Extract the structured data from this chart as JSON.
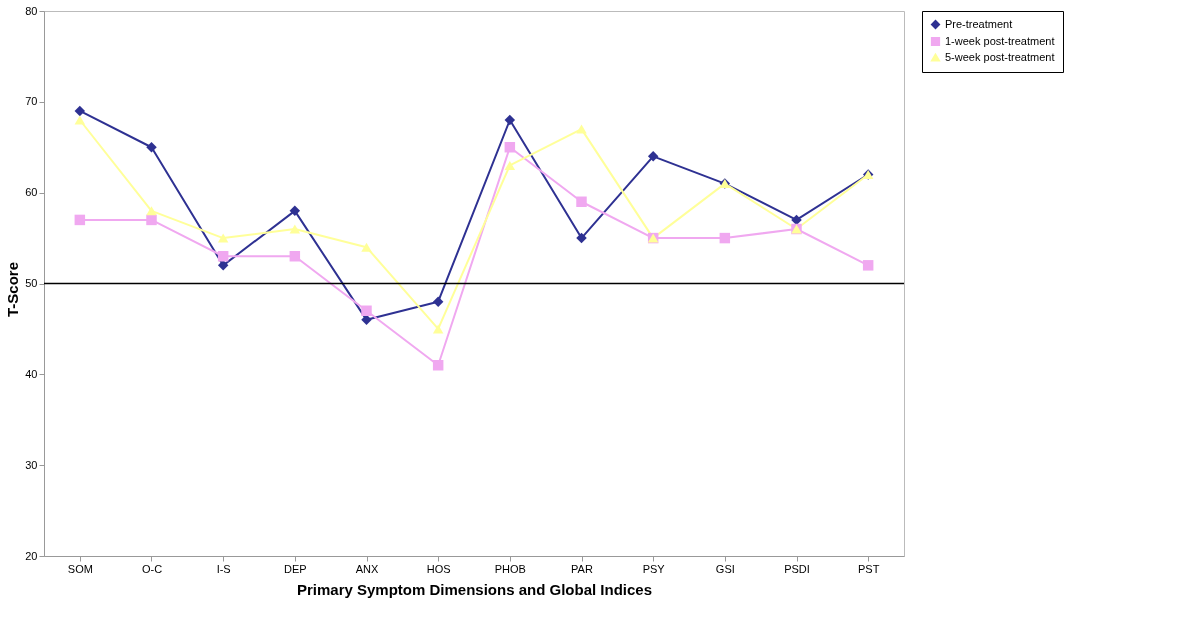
{
  "chart_data": {
    "type": "line",
    "xlabel": "Primary Symptom Dimensions and Global Indices",
    "ylabel": "T-Score",
    "categories": [
      "SOM",
      "O-C",
      "I-S",
      "DEP",
      "ANX",
      "HOS",
      "PHOB",
      "PAR",
      "PSY",
      "GSI",
      "PSDI",
      "PST"
    ],
    "series": [
      {
        "name": "Pre-treatment",
        "color": "#2e3192",
        "marker": "diamond",
        "values": [
          69,
          65,
          52,
          58,
          46,
          48,
          68,
          55,
          64,
          61,
          57,
          62
        ]
      },
      {
        "name": "1-week post-treatment",
        "color": "#f0a8f0",
        "marker": "square",
        "values": [
          57,
          57,
          53,
          53,
          47,
          41,
          65,
          59,
          55,
          55,
          56,
          52
        ]
      },
      {
        "name": "5-week post-treatment",
        "color": "#ffff99",
        "marker": "triangle",
        "values": [
          68,
          58,
          55,
          56,
          54,
          45,
          63,
          67,
          55,
          61,
          56,
          62
        ]
      }
    ],
    "ylim": [
      20,
      80
    ],
    "yticks": [
      20,
      30,
      40,
      50,
      60,
      70,
      80
    ],
    "grid": false,
    "legend": "right",
    "line_style": "solid",
    "ref_lines": [
      {
        "axis": "y",
        "value": 50,
        "label": null,
        "color": "#000000"
      }
    ]
  }
}
